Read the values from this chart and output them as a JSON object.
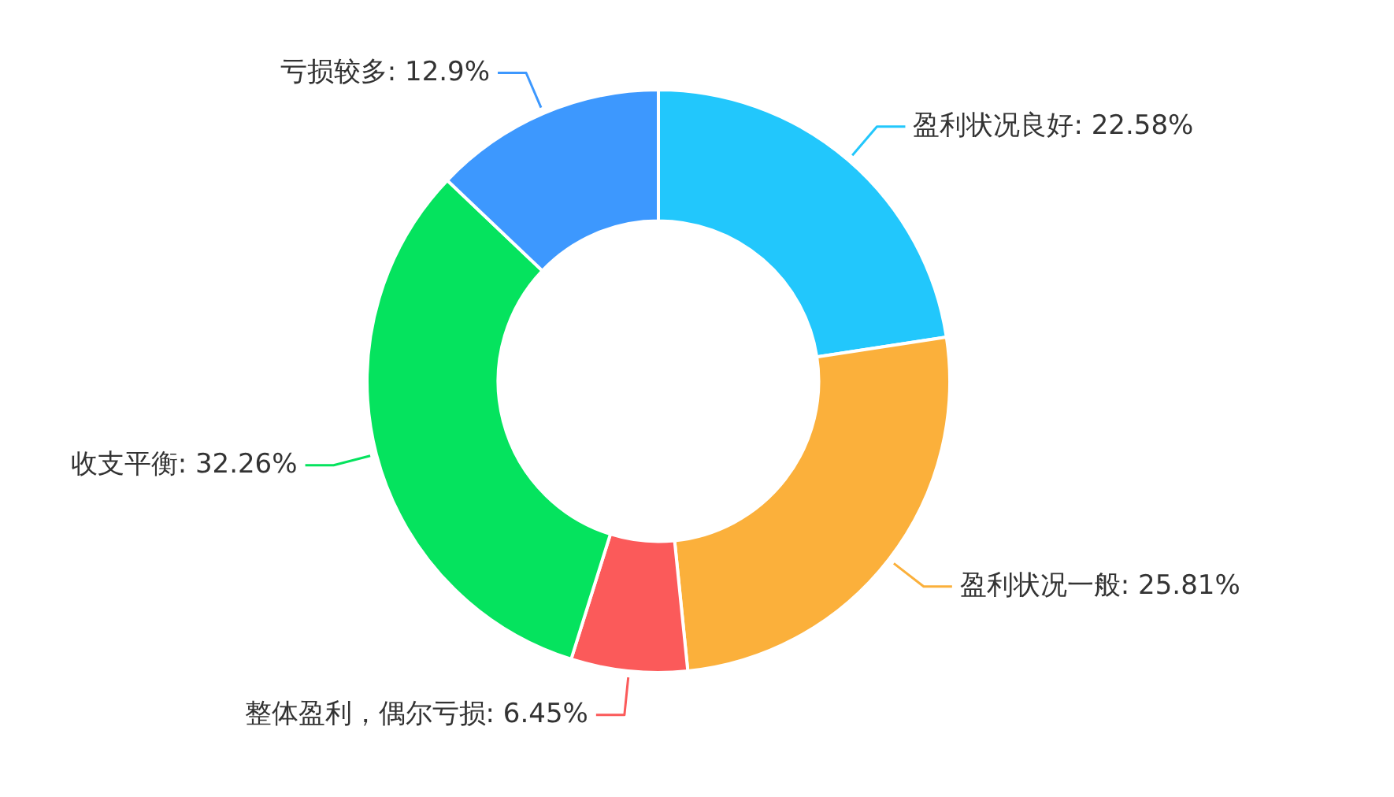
{
  "chart_data": {
    "type": "donut",
    "categories": [
      "盈利状况良好",
      "盈利状况一般",
      "整体盈利，偶尔亏损",
      "收支平衡",
      "亏损较多"
    ],
    "values": [
      22.58,
      25.81,
      6.45,
      32.26,
      12.9
    ],
    "value_labels": [
      "22.58%",
      "25.81%",
      "6.45%",
      "32.26%",
      "12.9%"
    ],
    "colors": [
      "#22c7fc",
      "#fbb03b",
      "#fb5a5a",
      "#05e35e",
      "#3d98fe"
    ]
  }
}
